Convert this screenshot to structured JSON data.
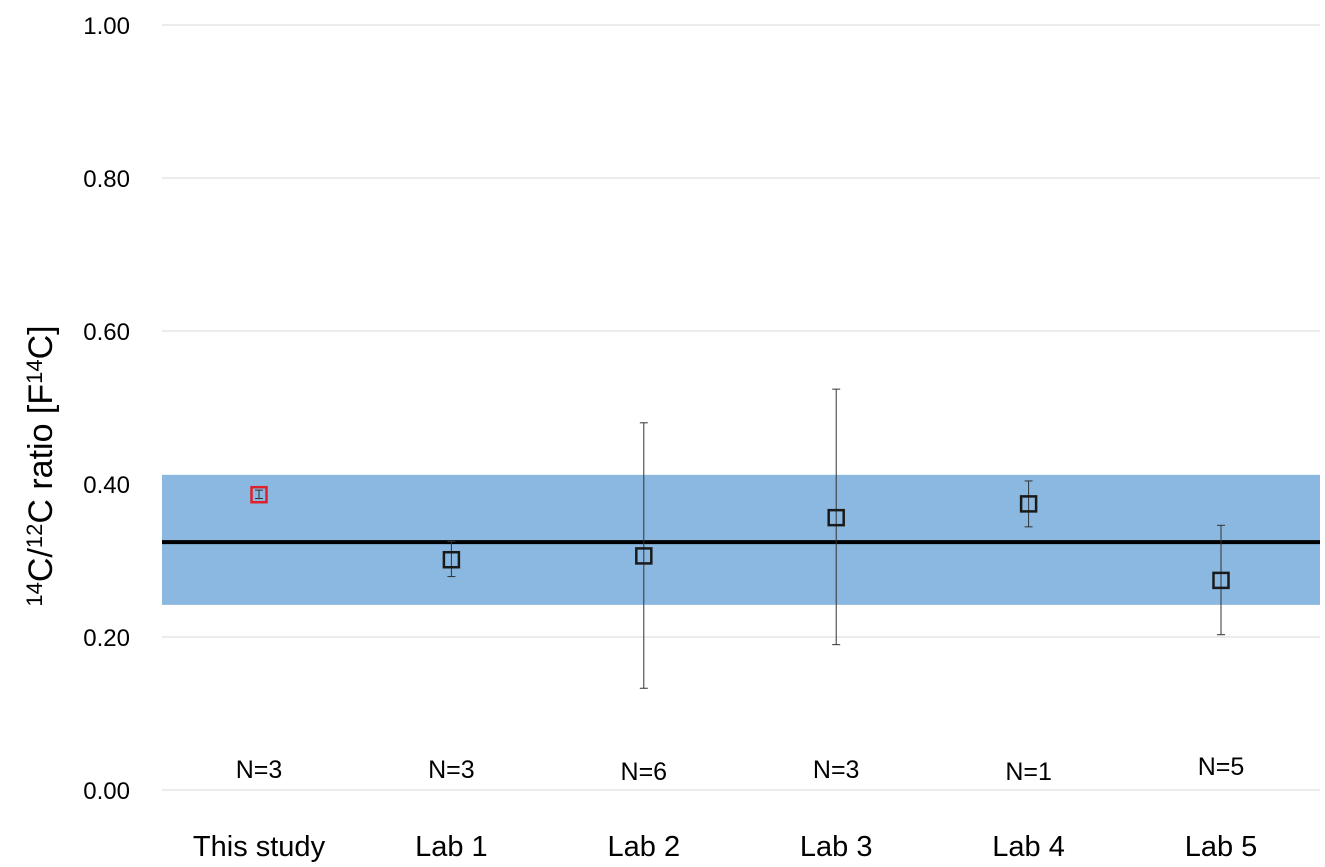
{
  "chart_data": {
    "type": "scatter",
    "title": "",
    "xlabel": "",
    "ylabel": {
      "parts": [
        {
          "text": "14",
          "sup": true
        },
        {
          "text": "C/",
          "sup": false
        },
        {
          "text": "12",
          "sup": true
        },
        {
          "text": "C ratio [F",
          "sup": false
        },
        {
          "text": "14",
          "sup": true
        },
        {
          "text": "C]",
          "sup": false
        }
      ]
    },
    "ylim": [
      0,
      1
    ],
    "yticks": [
      "0.00",
      "0.20",
      "0.40",
      "0.60",
      "0.80",
      "1.00"
    ],
    "grid": true,
    "categories": [
      "This study",
      "Lab 1",
      "Lab 2",
      "Lab 3",
      "Lab 4",
      "Lab 5"
    ],
    "n_labels": [
      "N=3",
      "N=3",
      "N=6",
      "N=3",
      "N=1",
      "N=5"
    ],
    "points": [
      {
        "category": "This study",
        "value": 0.386,
        "err_low": 0.381,
        "err_high": 0.392,
        "color": "#e0202a"
      },
      {
        "category": "Lab 1",
        "value": 0.301,
        "err_low": 0.279,
        "err_high": 0.325,
        "color": "#1a1a1a"
      },
      {
        "category": "Lab 2",
        "value": 0.306,
        "err_low": 0.133,
        "err_high": 0.48,
        "color": "#1a1a1a"
      },
      {
        "category": "Lab 3",
        "value": 0.356,
        "err_low": 0.19,
        "err_high": 0.524,
        "color": "#1a1a1a"
      },
      {
        "category": "Lab 4",
        "value": 0.374,
        "err_low": 0.344,
        "err_high": 0.404,
        "color": "#1a1a1a"
      },
      {
        "category": "Lab 5",
        "value": 0.274,
        "err_low": 0.203,
        "err_high": 0.346,
        "color": "#1a1a1a"
      }
    ],
    "reference_line": {
      "value": 0.324,
      "color": "#000000"
    },
    "reference_band": {
      "low": 0.242,
      "high": 0.412,
      "color": "#8ab8e0"
    }
  }
}
